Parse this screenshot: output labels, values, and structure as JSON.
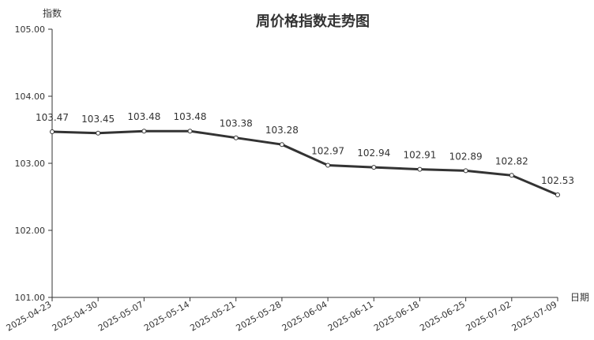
{
  "chart_data": {
    "type": "line",
    "title": "周价格指数走势图",
    "ylabel": "指数",
    "xlabel": "日期",
    "ylim": [
      101,
      105
    ],
    "yticks": [
      "101.00",
      "102.00",
      "103.00",
      "104.00",
      "105.00"
    ],
    "categories": [
      "2025-04-23",
      "2025-04-30",
      "2025-05-07",
      "2025-05-14",
      "2025-05-21",
      "2025-05-28",
      "2025-06-04",
      "2025-06-11",
      "2025-06-18",
      "2025-06-25",
      "2025-07-02",
      "2025-07-09"
    ],
    "values": [
      103.47,
      103.45,
      103.48,
      103.48,
      103.38,
      103.28,
      102.97,
      102.94,
      102.91,
      102.89,
      102.82,
      102.53
    ],
    "grid": false,
    "line_color": "#333333"
  }
}
